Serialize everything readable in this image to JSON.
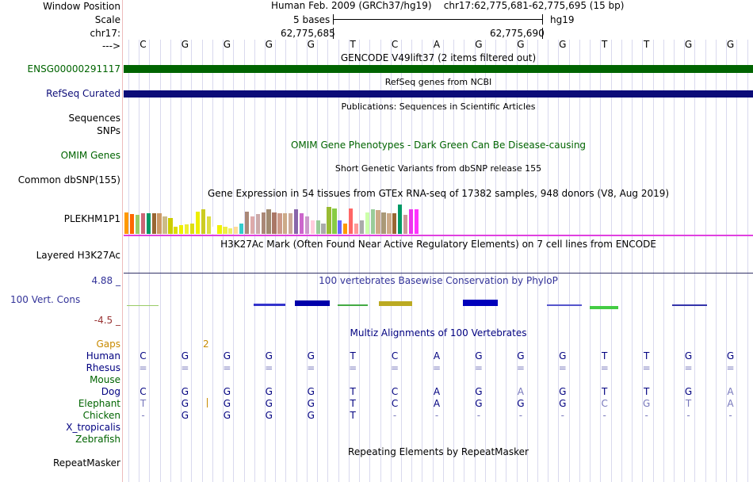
{
  "header": {
    "window_position_label": "Window Position",
    "scale_label": "Scale",
    "chrom_label": "chr17:",
    "arrow_label": "--->",
    "assembly": "Human Feb. 2009 (GRCh37/hg19)",
    "position": "chr17:62,775,681-62,775,695 (15 bp)",
    "scale_text": "5 bases",
    "scale_db": "hg19",
    "coord_left": "62,775,685",
    "coord_right": "62,775,690"
  },
  "bases": [
    "C",
    "G",
    "G",
    "G",
    "G",
    "T",
    "C",
    "A",
    "G",
    "G",
    "G",
    "T",
    "T",
    "G",
    "G"
  ],
  "tracks": {
    "gencode": {
      "title": "GENCODE V49lift37 (2 items filtered out)",
      "label": "ENSG00000291117",
      "color": "#006400"
    },
    "refseq": {
      "title": "RefSeq genes from NCBI",
      "label": "RefSeq Curated",
      "color": "#0c0c78"
    },
    "publications": {
      "title": "Publications: Sequences in Scientific Articles"
    },
    "sequences": {
      "label": "Sequences"
    },
    "snps": {
      "label": "SNPs"
    },
    "omim": {
      "title": "OMIM Gene Phenotypes - Dark Green Can Be Disease-causing",
      "label": "OMIM Genes",
      "color": "#006400"
    },
    "dbsnp": {
      "title": "Short Genetic Variants from dbSNP release 155",
      "label": "Common dbSNP(155)"
    },
    "gtex": {
      "title": "Gene Expression in 54 tissues from GTEx RNA-seq of 17382 samples, 948 donors (V8, Aug 2019)",
      "label": "PLEKHM1P1"
    },
    "h3k27ac": {
      "title": "H3K27Ac Mark (Often Found Near Active Regulatory Elements) on 7 cell lines from ENCODE",
      "label": "Layered H3K27Ac"
    },
    "phylop": {
      "title": "100 vertebrates Basewise Conservation by PhyloP",
      "label": "100 Vert. Cons",
      "max": "4.88 _",
      "min": "-4.5 _",
      "color": "#333399"
    },
    "multiz": {
      "title": "Multiz Alignments of 100 Vertebrates",
      "color": "#000080"
    },
    "repeatmasker": {
      "title": "Repeating Elements by RepeatMasker",
      "label": "RepeatMasker"
    }
  },
  "gaps": {
    "label": "Gaps",
    "value": "2",
    "color": "#c88a00"
  },
  "alignment": [
    {
      "species": "Human",
      "color": "#000080",
      "cells": [
        "C",
        "G",
        "G",
        "G",
        "G",
        "T",
        "C",
        "A",
        "G",
        "G",
        "G",
        "T",
        "T",
        "G",
        "G"
      ]
    },
    {
      "species": "Rhesus",
      "color": "#000080",
      "cells": [
        "=",
        "=",
        "=",
        "=",
        "=",
        "=",
        "=",
        "=",
        "=",
        "=",
        "=",
        "=",
        "=",
        "=",
        "="
      ]
    },
    {
      "species": "Mouse",
      "color": "#006400",
      "cells": [
        "",
        "",
        "",
        "",
        "",
        "",
        "",
        "",
        "",
        "",
        "",
        "",
        "",
        "",
        ""
      ]
    },
    {
      "species": "Dog",
      "color": "#000080",
      "cells": [
        "C",
        "G",
        "G",
        "G",
        "G",
        "T",
        "C",
        "A",
        "G",
        "A",
        "G",
        "T",
        "T",
        "G",
        "A"
      ]
    },
    {
      "species": "Elephant",
      "color": "#006400",
      "cells": [
        "T",
        "G",
        "G",
        "G",
        "G",
        "T",
        "C",
        "A",
        "G",
        "G",
        "G",
        "C",
        "G",
        "T",
        "A"
      ]
    },
    {
      "species": "Chicken",
      "color": "#006400",
      "cells": [
        "-",
        "G",
        "G",
        "G",
        "G",
        "T",
        "-",
        "-",
        "-",
        "-",
        "-",
        "-",
        "-",
        "-",
        "-"
      ]
    },
    {
      "species": "X_tropicalis",
      "color": "#000080",
      "cells": [
        "",
        "",
        "",
        "",
        "",
        "",
        "",
        "",
        "",
        "",
        "",
        "",
        "",
        "",
        ""
      ]
    },
    {
      "species": "Zebrafish",
      "color": "#006400",
      "cells": [
        "",
        "",
        "",
        "",
        "",
        "",
        "",
        "",
        "",
        "",
        "",
        "",
        "",
        "",
        ""
      ]
    }
  ],
  "gtex_values": [
    0.62,
    0.58,
    0.55,
    0.6,
    0.6,
    0.6,
    0.6,
    0.5,
    0.47,
    0.2,
    0.25,
    0.28,
    0.3,
    0.65,
    0.72,
    0.5,
    0.2,
    0.25,
    0.22,
    0.17,
    0.22,
    0.3,
    0.65,
    0.5,
    0.57,
    0.62,
    0.72,
    0.62,
    0.6,
    0.6,
    0.6,
    0.72,
    0.6,
    0.5,
    0.4,
    0.4,
    0.3,
    0.8,
    0.75,
    0.4,
    0.3,
    0.75,
    0.3,
    0.4,
    0.62,
    0.72,
    0.7,
    0.62,
    0.6,
    0.6,
    0.85,
    0.55,
    0.72,
    0.72
  ],
  "gtex_colors": [
    "#ff9900",
    "#ff6600",
    "#99cc66",
    "#cc6677",
    "#009966",
    "#996633",
    "#cc9966",
    "#ccbb88",
    "#cccc00",
    "#dddd00",
    "#eeee00",
    "#eeee33",
    "#dddd11",
    "#eeee00",
    "#cccc22",
    "#dddd44",
    "#ffffff",
    "#f0f000",
    "#eeee44",
    "#eeee66",
    "#ffdd99",
    "#33cccc",
    "#aa8877",
    "#ddaaaa",
    "#ccaaaa",
    "#aa8877",
    "#a08a70",
    "#aa7766",
    "#cc9988",
    "#ccaa88",
    "#ccaa99",
    "#8866aa",
    "#cc66cc",
    "#cc99cc",
    "#ffccdd",
    "#99cc99",
    "#aaaaaa",
    "#99bb33",
    "#88cc44",
    "#6666ff",
    "#ff9900",
    "#ff6666",
    "#ff9999",
    "#aaaaaa",
    "#ccffaa",
    "#99cc99",
    "#ccaa88",
    "#aa9977",
    "#ccaa88",
    "#996633",
    "#009966",
    "#cc9999",
    "#ee33ee",
    "#ff33ff"
  ]
}
